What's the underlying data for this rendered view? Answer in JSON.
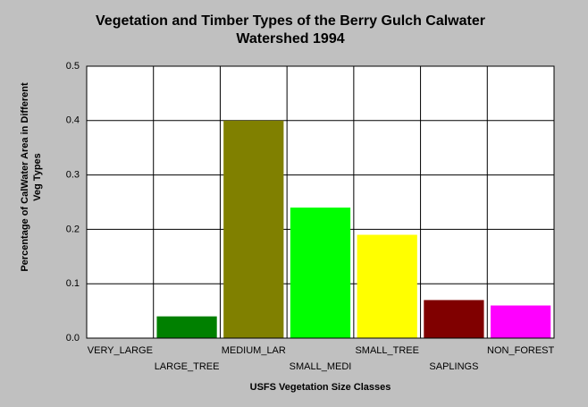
{
  "chart_data": {
    "type": "bar",
    "title": "Vegetation and Timber Types of the Berry Gulch Calwater Watershed 1994",
    "y_label": "Percentage of CalWater Area in Different Veg Types",
    "x_label": "USFS Vegetation Size Classes",
    "categories": [
      "VERY_LARGE",
      "LARGE_TREE",
      "MEDIUM_LAR",
      "SMALL_MEDI",
      "SMALL_TREE",
      "SAPLINGS",
      "NON_FOREST"
    ],
    "values": [
      0,
      0.04,
      0.4,
      0.24,
      0.19,
      0.07,
      0.06
    ],
    "colors": [
      "#000080",
      "#008000",
      "#808000",
      "#00ff00",
      "#ffff00",
      "#800000",
      "#ff00ff"
    ],
    "ylim": [
      0,
      0.5
    ],
    "yticks": [
      {
        "value": 0,
        "label": "0.0"
      },
      0.1,
      0.2,
      0.3,
      0.4,
      0.5
    ],
    "grid": true
  }
}
